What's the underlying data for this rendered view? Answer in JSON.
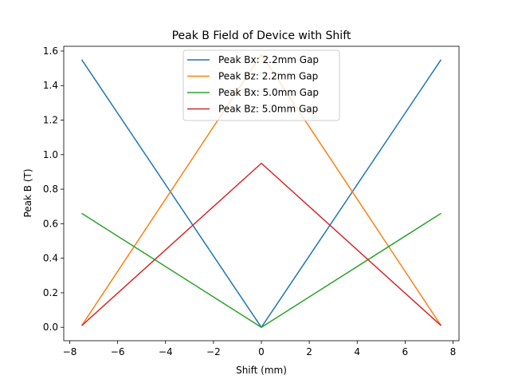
{
  "chart_data": {
    "type": "line",
    "title": "Peak B Field of Device with Shift",
    "xlabel": "Shift (mm)",
    "ylabel": "Peak B (T)",
    "xlim": [
      -8.25,
      8.25
    ],
    "ylim": [
      -0.0775,
      1.6275
    ],
    "xticks": [
      -8,
      -6,
      -4,
      -2,
      0,
      2,
      4,
      6,
      8
    ],
    "yticks": [
      0.0,
      0.2,
      0.4,
      0.6,
      0.8,
      1.0,
      1.2,
      1.4,
      1.6
    ],
    "legend_position": "upper center",
    "grid": false,
    "series": [
      {
        "name": "Peak Bx: 2.2mm Gap",
        "color": "#1f77b4",
        "x": [
          -7.5,
          0,
          7.5
        ],
        "y": [
          1.55,
          0.0,
          1.55
        ]
      },
      {
        "name": "Peak Bz: 2.2mm Gap",
        "color": "#ff7f0e",
        "x": [
          -7.5,
          0,
          7.5
        ],
        "y": [
          0.01,
          1.58,
          0.01
        ]
      },
      {
        "name": "Peak Bx: 5.0mm Gap",
        "color": "#2ca02c",
        "x": [
          -7.5,
          0,
          7.5
        ],
        "y": [
          0.66,
          0.0,
          0.66
        ]
      },
      {
        "name": "Peak Bz: 5.0mm Gap",
        "color": "#d62728",
        "x": [
          -7.5,
          0,
          7.5
        ],
        "y": [
          0.01,
          0.95,
          0.01
        ]
      }
    ]
  }
}
